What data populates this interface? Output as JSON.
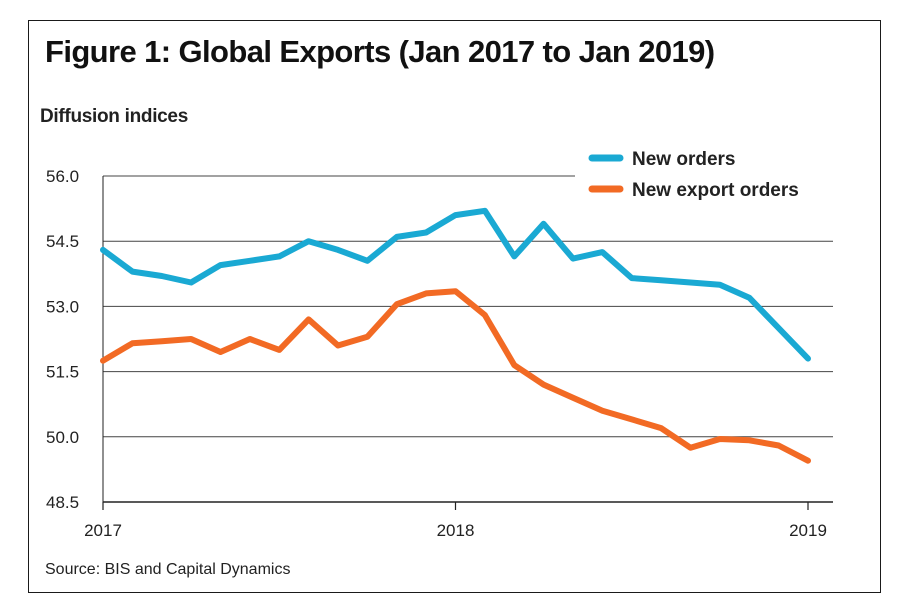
{
  "title": "Figure 1: Global Exports (Jan 2017 to Jan 2019)",
  "source": "Source: BIS and Capital Dynamics",
  "colors": {
    "new_orders": "#1aa9d3",
    "new_export_orders": "#f26a24"
  },
  "chart_data": {
    "type": "line",
    "title": "Figure 1: Global Exports (Jan 2017 to Jan 2019)",
    "ylabel": "Diffusion indices",
    "xlabel": "",
    "ylim": [
      48.5,
      56.0
    ],
    "yticks": [
      48.5,
      50.0,
      51.5,
      53.0,
      54.5,
      56.0
    ],
    "ytick_labels": [
      "48.5",
      "50.0",
      "51.5",
      "53.0",
      "54.5",
      "56.0"
    ],
    "xlim": [
      "2017-01",
      "2019-01"
    ],
    "xticks": [
      "2017-01",
      "2018-01",
      "2019-01"
    ],
    "xtick_labels": [
      "2017",
      "2018",
      "2019"
    ],
    "grid": "horizontal",
    "legend": "top-right",
    "x": [
      "2017-01",
      "2017-02",
      "2017-03",
      "2017-04",
      "2017-05",
      "2017-06",
      "2017-07",
      "2017-08",
      "2017-09",
      "2017-10",
      "2017-11",
      "2017-12",
      "2018-01",
      "2018-02",
      "2018-03",
      "2018-04",
      "2018-05",
      "2018-06",
      "2018-07",
      "2018-08",
      "2018-09",
      "2018-10",
      "2018-11",
      "2018-12",
      "2019-01"
    ],
    "series": [
      {
        "name": "New orders",
        "values": [
          54.3,
          53.8,
          53.7,
          53.55,
          53.95,
          54.05,
          54.15,
          54.5,
          54.3,
          54.05,
          54.6,
          54.7,
          55.1,
          55.2,
          54.15,
          54.9,
          54.1,
          54.25,
          53.65,
          53.6,
          53.55,
          53.5,
          53.2,
          52.5,
          51.8
        ]
      },
      {
        "name": "New export orders",
        "values": [
          51.75,
          52.15,
          52.2,
          52.25,
          51.95,
          52.25,
          52.0,
          52.7,
          52.1,
          52.3,
          53.05,
          53.3,
          53.35,
          52.8,
          51.65,
          51.2,
          50.9,
          50.6,
          50.4,
          50.2,
          49.75,
          49.95,
          49.92,
          49.8,
          49.45
        ]
      }
    ]
  }
}
